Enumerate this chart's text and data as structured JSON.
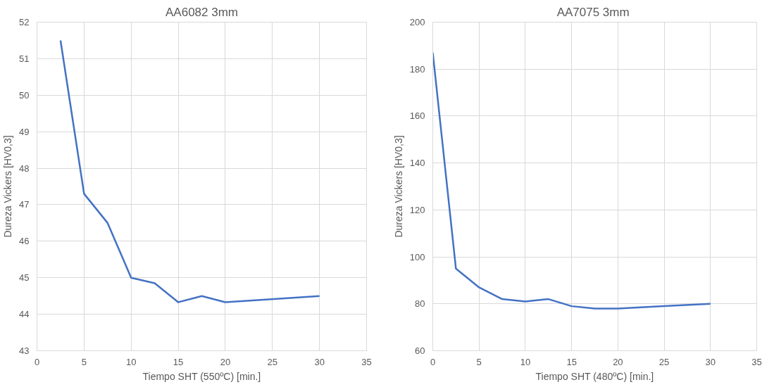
{
  "chart_data": [
    {
      "type": "line",
      "title": "AA6082 3mm",
      "xlabel": "Tiempo SHT (550ºC) [min.]",
      "ylabel": "Dureza Vickers [HV0,3]",
      "x": [
        2.5,
        5,
        7.5,
        10,
        12.5,
        15,
        17.5,
        20,
        30
      ],
      "series": [
        {
          "color": "#4472c4",
          "values": [
            51.5,
            47.3,
            46.5,
            45.0,
            44.85,
            44.33,
            44.5,
            44.33,
            44.5
          ]
        }
      ],
      "xlim": [
        0,
        35
      ],
      "xticks": [
        0,
        5,
        10,
        15,
        20,
        25,
        30,
        35
      ],
      "ylim": [
        43,
        52
      ],
      "yticks": [
        43,
        44,
        45,
        46,
        47,
        48,
        49,
        50,
        51,
        52
      ],
      "grid": true
    },
    {
      "type": "line",
      "title": "AA7075  3mm",
      "xlabel": "Tiempo SHT (480ºC) [min.]",
      "ylabel": "Dureza Vickers [HV0,3]",
      "x": [
        0,
        2.5,
        5,
        7.5,
        10,
        12.5,
        15,
        17.5,
        20,
        25,
        30
      ],
      "series": [
        {
          "color": "#4472c4",
          "values": [
            187,
            95,
            87,
            82,
            81,
            82,
            79,
            78,
            78,
            79,
            80
          ]
        }
      ],
      "xlim": [
        0,
        35
      ],
      "xticks": [
        0,
        5,
        10,
        15,
        20,
        25,
        30,
        35
      ],
      "ylim": [
        60,
        200
      ],
      "yticks": [
        60,
        80,
        100,
        120,
        140,
        160,
        180,
        200
      ],
      "grid": true
    }
  ]
}
